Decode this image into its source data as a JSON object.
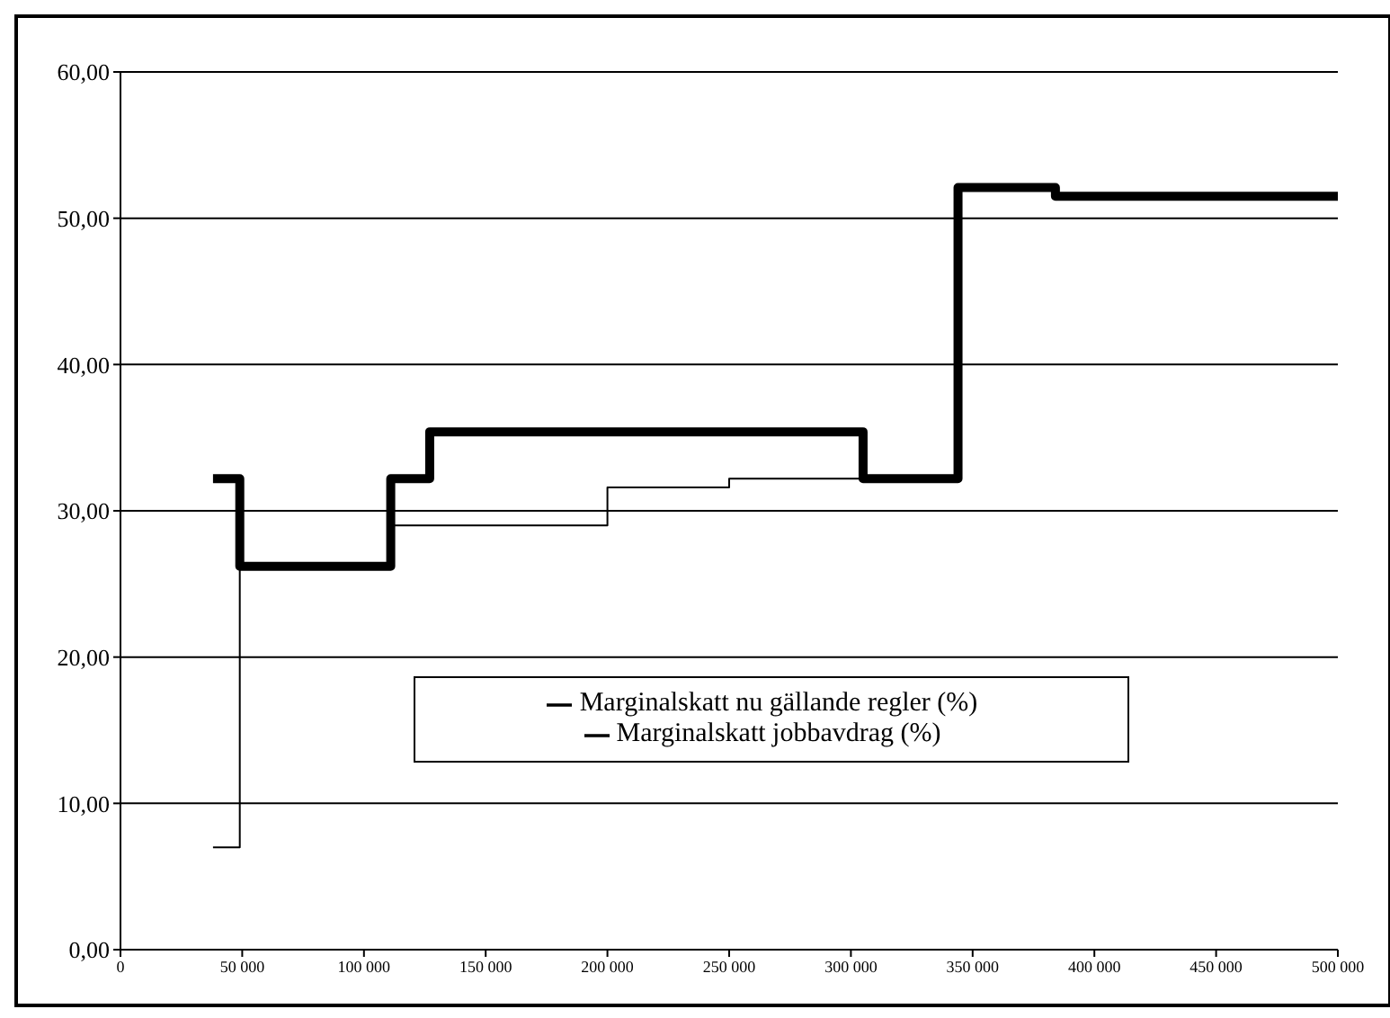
{
  "chart_data": {
    "type": "step",
    "series": [
      {
        "name": "Marginalskatt nu gällande regler (%)",
        "color": "#000000",
        "x": [
          38000,
          49000,
          111000,
          127000,
          305000,
          344000,
          384000,
          500000
        ],
        "values": [
          32.2,
          26.2,
          32.2,
          35.4,
          32.2,
          52.1,
          51.5,
          51.5
        ]
      },
      {
        "name": "Marginalskatt jobbavdrag (%)",
        "color": "#000000",
        "x": [
          38000,
          49000,
          111000,
          200000,
          250000,
          305000
        ],
        "values": [
          7,
          26.2,
          29,
          31.6,
          32.2,
          32.2
        ]
      }
    ],
    "xlim": [
      0,
      500000
    ],
    "xticks": [
      0,
      {
        "value": 50000,
        "label": "50 000"
      },
      {
        "value": 100000,
        "label": "100 000"
      },
      {
        "value": 150000,
        "label": "150 000"
      },
      {
        "value": 200000,
        "label": "200 000"
      },
      {
        "value": 250000,
        "label": "250 000"
      },
      {
        "value": 300000,
        "label": "300 000"
      },
      {
        "value": 350000,
        "label": "350 000"
      },
      {
        "value": 400000,
        "label": "400 000"
      },
      {
        "value": 450000,
        "label": "450 000"
      },
      {
        "value": 500000,
        "label": "500 000"
      }
    ],
    "ylim": [
      0,
      60
    ],
    "yticks": [
      {
        "value": 0,
        "label": "0,00"
      },
      {
        "value": 10,
        "label": "10,00"
      },
      {
        "value": 20,
        "label": "20,00"
      },
      {
        "value": 30,
        "label": "30,00"
      },
      {
        "value": 40,
        "label": "40,00"
      },
      {
        "value": 50,
        "label": "50,00"
      },
      {
        "value": 60,
        "label": "60,00"
      }
    ],
    "grid": "y",
    "legend": "bottom",
    "marker": "none",
    "line_style": "solid"
  }
}
